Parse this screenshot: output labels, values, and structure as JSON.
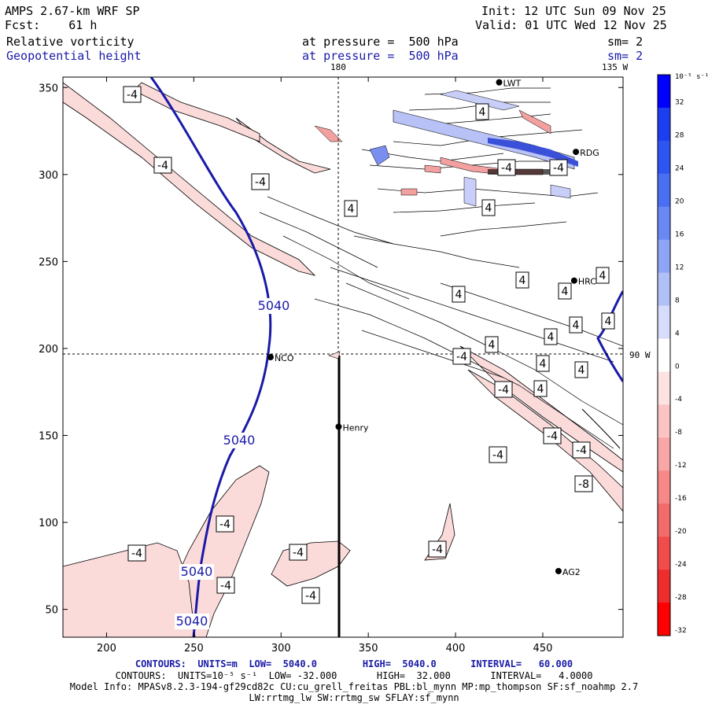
{
  "header": {
    "model": "AMPS 2.67-km WRF SP",
    "forecast": "Fcst:    61 h",
    "init": "Init: 12 UTC Sun 09 Nov 25",
    "valid": "Valid: 01 UTC Wed 12 Nov 25",
    "field1_name": "Relative vorticity",
    "field1_level": "at pressure =  500 hPa",
    "field1_sm": "sm= 2",
    "field2_name": "Geopotential height",
    "field2_level": "at pressure =  500 hPa",
    "field2_sm": "sm= 2"
  },
  "map_labels": {
    "lon_180": "180",
    "lon_135w": "135 W",
    "lon_90w": "90 W"
  },
  "axes": {
    "x_ticks": [
      "200",
      "250",
      "300",
      "350",
      "400",
      "450"
    ],
    "y_ticks": [
      "50",
      "100",
      "150",
      "200",
      "250",
      "300",
      "350"
    ],
    "xlim": [
      175,
      496
    ],
    "ylim": [
      34,
      356
    ]
  },
  "stations": [
    {
      "name": "NCO",
      "x": 294,
      "y": 195
    },
    {
      "name": "Henry",
      "x": 333,
      "y": 155
    },
    {
      "name": "RDG",
      "x": 469,
      "y": 313
    },
    {
      "name": "HRC",
      "x": 468,
      "y": 239
    },
    {
      "name": "AG2",
      "x": 459,
      "y": 72
    },
    {
      "name": "LWT",
      "x": 425,
      "y": 353
    }
  ],
  "contour_labels": {
    "height": [
      "5040",
      "5040",
      "5040",
      "5040"
    ],
    "vorticity": [
      "-4",
      "-4",
      "-4",
      "-4",
      "-4",
      "-4",
      "-4",
      "-4",
      "-4",
      "-4",
      "-4",
      "-4",
      "-4",
      "-4",
      "-8",
      "-4",
      "-4",
      "4",
      "4",
      "4",
      "4",
      "4",
      "4",
      "4",
      "4",
      "4",
      "4",
      "4",
      "4",
      "4",
      "4"
    ]
  },
  "colorbar": {
    "unit": "10⁻⁵ s⁻¹",
    "labels": [
      "32",
      "28",
      "24",
      "20",
      "16",
      "12",
      "8",
      "4",
      "0",
      "-4",
      "-8",
      "-12",
      "-16",
      "-20",
      "-24",
      "-28",
      "-32"
    ],
    "colors": [
      "#0000ff",
      "#1d3ef0",
      "#2e55f2",
      "#4a6ff2",
      "#6a88f4",
      "#8ea4f6",
      "#b2c0f8",
      "#d6dcfb",
      "#ffffff",
      "#fde2e2",
      "#fbc4c4",
      "#f8a6a6",
      "#f68888",
      "#f36a6a",
      "#f14c4c",
      "#ee2e2e",
      "#ff0000"
    ]
  },
  "footer": {
    "line1": "CONTOURS:  UNITS=m  LOW=  5040.0        HIGH=  5040.0      INTERVAL=   60.000",
    "line2": "CONTOURS:  UNITS=10⁻⁵ s⁻¹  LOW= -32.000       HIGH=  32.000       INTERVAL=   4.0000",
    "line3": "Model Info: MPASv8.2.3-194-gf29cd82c CU:cu_grell_freitas PBL:bl_mynn MP:mp_thompson SF:sf_noahmp 2.7",
    "line4": "LW:rrtmg_lw SW:rrtmg_sw SFLAY:sf_mynn"
  }
}
